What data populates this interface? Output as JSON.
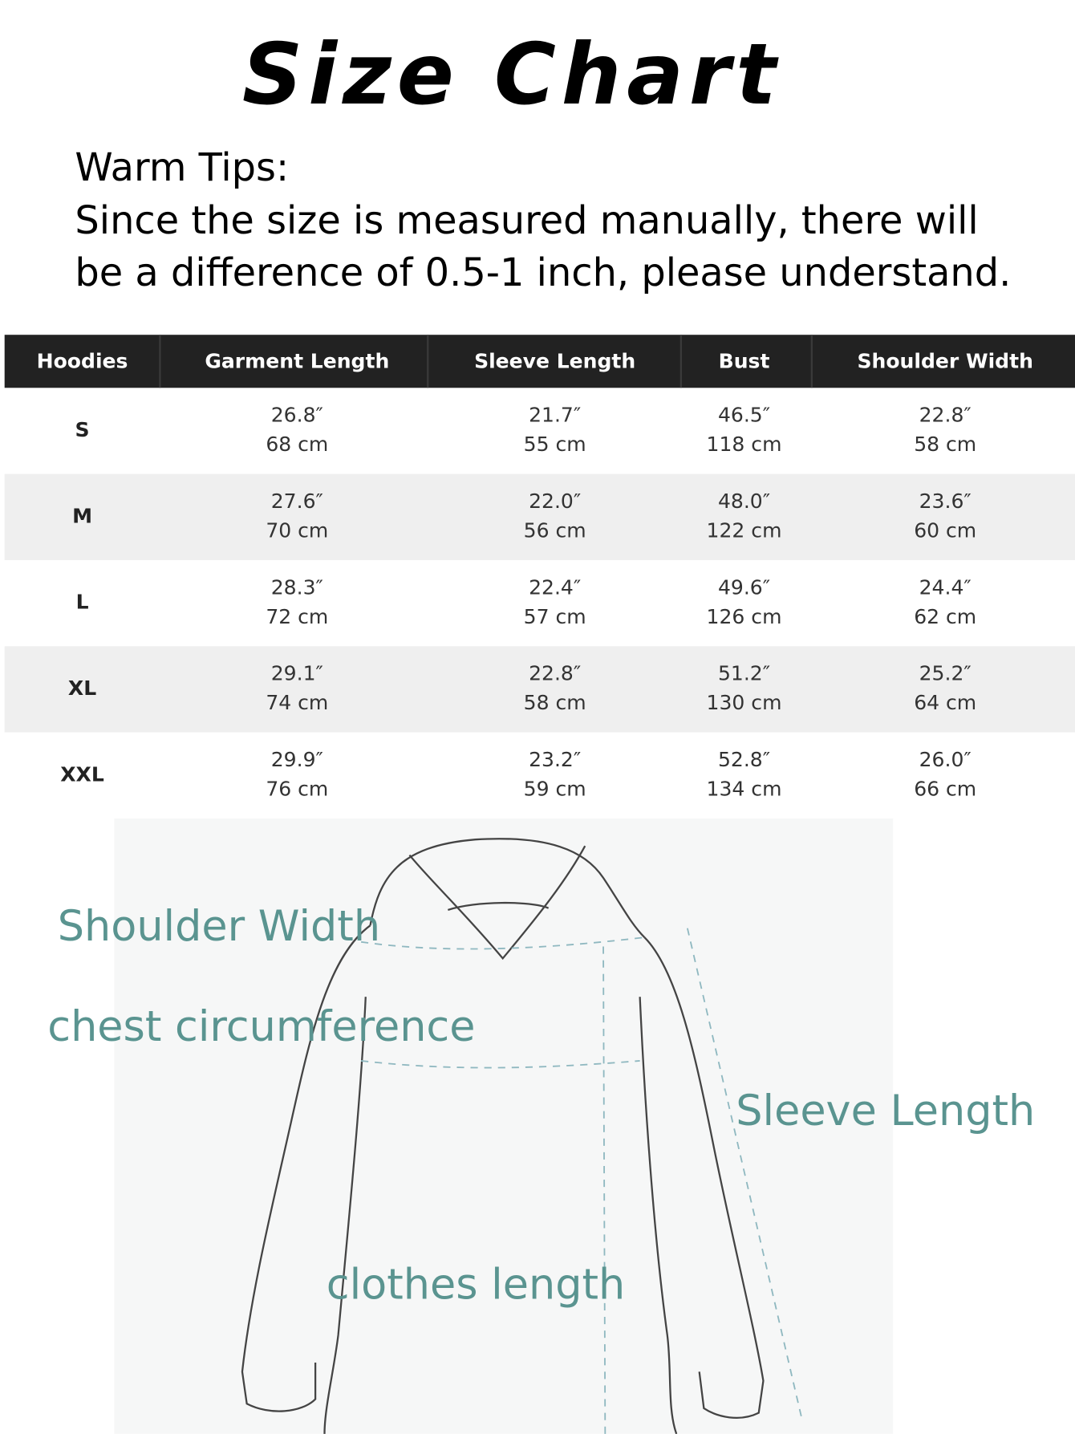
{
  "header": {
    "title": "Size Chart",
    "tips_heading": "Warm Tips:",
    "tips_lines": [
      "Since the size is measured manually, there will",
      "be a difference of 0.5-1 inch, please understand."
    ]
  },
  "table": {
    "columns": [
      "Hoodies",
      "Garment Length",
      "Sleeve Length",
      "Bust",
      "Shoulder Width"
    ],
    "rows": [
      {
        "size": "S",
        "cells": [
          [
            "26.8″",
            "68 cm"
          ],
          [
            "21.7″",
            "55 cm"
          ],
          [
            "46.5″",
            "118 cm"
          ],
          [
            "22.8″",
            "58 cm"
          ]
        ]
      },
      {
        "size": "M",
        "cells": [
          [
            "27.6″",
            "70 cm"
          ],
          [
            "22.0″",
            "56 cm"
          ],
          [
            "48.0″",
            "122 cm"
          ],
          [
            "23.6″",
            "60 cm"
          ]
        ]
      },
      {
        "size": "L",
        "cells": [
          [
            "28.3″",
            "72 cm"
          ],
          [
            "22.4″",
            "57 cm"
          ],
          [
            "49.6″",
            "126 cm"
          ],
          [
            "24.4″",
            "62 cm"
          ]
        ]
      },
      {
        "size": "XL",
        "cells": [
          [
            "29.1″",
            "74 cm"
          ],
          [
            "22.8″",
            "58 cm"
          ],
          [
            "51.2″",
            "130 cm"
          ],
          [
            "25.2″",
            "64 cm"
          ]
        ]
      },
      {
        "size": "XXL",
        "cells": [
          [
            "29.9″",
            "76 cm"
          ],
          [
            "23.2″",
            "59 cm"
          ],
          [
            "52.8″",
            "134 cm"
          ],
          [
            "26.0″",
            "66 cm"
          ]
        ]
      }
    ]
  },
  "diagram": {
    "labels": [
      "Shoulder Width",
      "chest circumference",
      "Sleeve Length",
      "clothes length"
    ]
  }
}
